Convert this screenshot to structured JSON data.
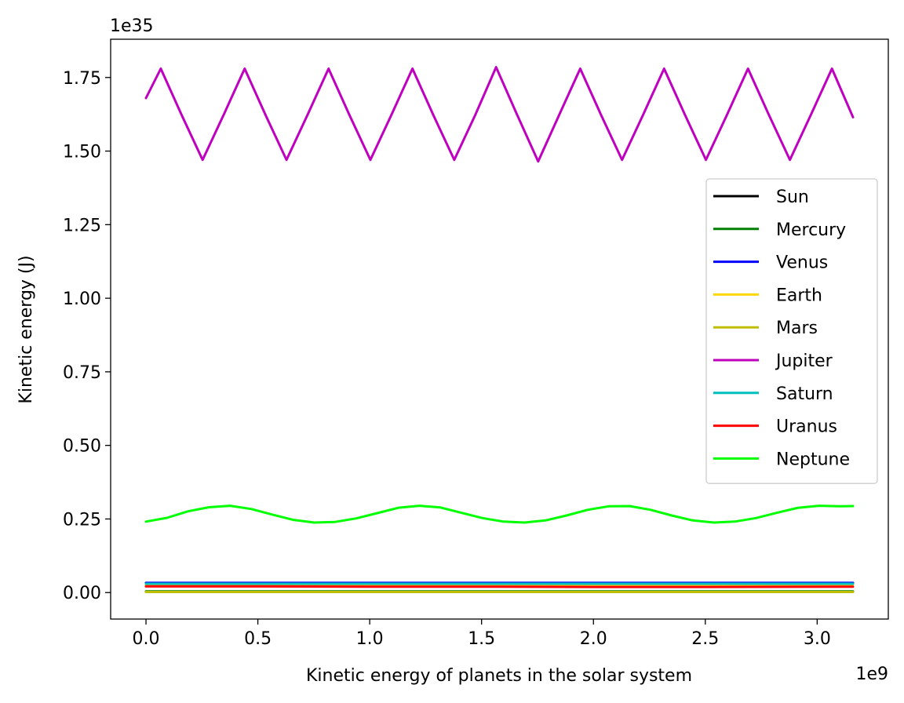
{
  "chart_data": {
    "type": "line",
    "title": "",
    "xlabel": "Kinetic energy of planets in the solar system",
    "ylabel": "Kinetic energy (J)",
    "x_offset_text": "1e9",
    "y_offset_text": "1e35",
    "x_scale": 1000000000.0,
    "y_scale": 1e+35,
    "xlim": [
      -0.158,
      3.318
    ],
    "ylim": [
      -0.09,
      1.88
    ],
    "xticks": [
      0.0,
      0.5,
      1.0,
      1.5,
      2.0,
      2.5,
      3.0
    ],
    "xtick_labels": [
      "0.0",
      "0.5",
      "1.0",
      "1.5",
      "2.0",
      "2.5",
      "3.0"
    ],
    "yticks": [
      0.0,
      0.25,
      0.5,
      0.75,
      1.0,
      1.25,
      1.5,
      1.75
    ],
    "ytick_labels": [
      "0.00",
      "0.25",
      "0.50",
      "0.75",
      "1.00",
      "1.25",
      "1.50",
      "1.75"
    ],
    "grid": false,
    "legend_position": "center-right",
    "series": [
      {
        "name": "Sun",
        "color": "#000000",
        "x": [
          0.0,
          0.5,
          1.0,
          1.5,
          2.0,
          2.5,
          3.16
        ],
        "y": [
          0.003,
          0.003,
          0.003,
          0.003,
          0.003,
          0.003,
          0.003
        ]
      },
      {
        "name": "Mercury",
        "color": "#008000",
        "x": [
          0.0,
          0.5,
          1.0,
          1.5,
          2.0,
          2.5,
          3.16
        ],
        "y": [
          0.004,
          0.004,
          0.004,
          0.004,
          0.004,
          0.004,
          0.004
        ]
      },
      {
        "name": "Venus",
        "color": "#0000ff",
        "x": [
          0.0,
          0.5,
          1.0,
          1.5,
          2.0,
          2.5,
          3.16
        ],
        "y": [
          0.033,
          0.033,
          0.033,
          0.033,
          0.033,
          0.033,
          0.033
        ]
      },
      {
        "name": "Earth",
        "color": "#ffd700",
        "x": [
          0.0,
          0.5,
          1.0,
          1.5,
          2.0,
          2.5,
          3.16
        ],
        "y": [
          0.027,
          0.027,
          0.027,
          0.027,
          0.027,
          0.027,
          0.027
        ]
      },
      {
        "name": "Mars",
        "color": "#bfbf00",
        "x": [
          0.0,
          0.5,
          1.0,
          1.5,
          2.0,
          2.5,
          3.16
        ],
        "y": [
          0.002,
          0.002,
          0.002,
          0.002,
          0.002,
          0.002,
          0.002
        ]
      },
      {
        "name": "Jupiter",
        "color": "#bf00bf",
        "x": [
          0.0,
          0.066,
          0.158,
          0.253,
          0.348,
          0.441,
          0.533,
          0.628,
          0.723,
          0.816,
          0.908,
          1.003,
          1.098,
          1.191,
          1.283,
          1.378,
          1.473,
          1.565,
          1.658,
          1.753,
          1.848,
          1.941,
          2.033,
          2.128,
          2.223,
          2.316,
          2.408,
          2.503,
          2.598,
          2.691,
          2.783,
          2.878,
          2.973,
          3.066,
          3.16
        ],
        "y": [
          1.68,
          1.78,
          1.625,
          1.47,
          1.625,
          1.78,
          1.625,
          1.47,
          1.625,
          1.78,
          1.625,
          1.47,
          1.625,
          1.78,
          1.625,
          1.47,
          1.625,
          1.785,
          1.625,
          1.465,
          1.625,
          1.78,
          1.625,
          1.47,
          1.625,
          1.78,
          1.625,
          1.47,
          1.625,
          1.78,
          1.625,
          1.47,
          1.625,
          1.78,
          1.615
        ]
      },
      {
        "name": "Saturn",
        "color": "#00bfbf",
        "x": [
          0.0,
          0.5,
          1.0,
          1.5,
          2.0,
          2.5,
          3.16
        ],
        "y": [
          0.03,
          0.03,
          0.03,
          0.03,
          0.03,
          0.03,
          0.03
        ]
      },
      {
        "name": "Uranus",
        "color": "#ff0000",
        "x": [
          0.0,
          0.5,
          1.0,
          1.5,
          2.0,
          2.5,
          3.16
        ],
        "y": [
          0.021,
          0.021,
          0.02,
          0.02,
          0.019,
          0.019,
          0.02
        ]
      },
      {
        "name": "Neptune",
        "color": "#00ff00",
        "x": [
          0.0,
          0.094,
          0.188,
          0.282,
          0.376,
          0.47,
          0.564,
          0.658,
          0.752,
          0.846,
          0.94,
          1.034,
          1.128,
          1.222,
          1.316,
          1.41,
          1.504,
          1.598,
          1.692,
          1.786,
          1.88,
          1.974,
          2.068,
          2.162,
          2.256,
          2.35,
          2.444,
          2.538,
          2.632,
          2.726,
          2.82,
          2.914,
          3.008,
          3.102,
          3.16
        ],
        "y": [
          0.241,
          0.254,
          0.276,
          0.29,
          0.295,
          0.284,
          0.265,
          0.247,
          0.238,
          0.24,
          0.252,
          0.27,
          0.288,
          0.295,
          0.289,
          0.271,
          0.253,
          0.241,
          0.238,
          0.245,
          0.262,
          0.281,
          0.293,
          0.294,
          0.281,
          0.262,
          0.245,
          0.238,
          0.241,
          0.253,
          0.271,
          0.288,
          0.295,
          0.293,
          0.294
        ]
      }
    ]
  }
}
